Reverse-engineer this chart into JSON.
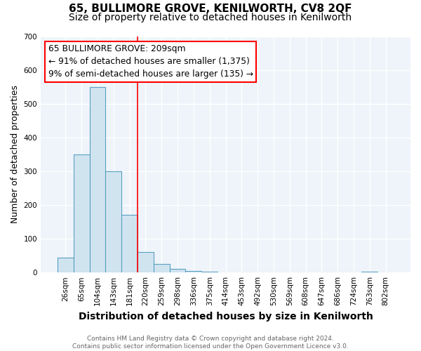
{
  "title": "65, BULLIMORE GROVE, KENILWORTH, CV8 2QF",
  "subtitle": "Size of property relative to detached houses in Kenilworth",
  "xlabel": "Distribution of detached houses by size in Kenilworth",
  "ylabel": "Number of detached properties",
  "footnote": "Contains HM Land Registry data © Crown copyright and database right 2024.\nContains public sector information licensed under the Open Government Licence v3.0.",
  "categories": [
    "26sqm",
    "65sqm",
    "104sqm",
    "143sqm",
    "181sqm",
    "220sqm",
    "259sqm",
    "298sqm",
    "336sqm",
    "375sqm",
    "414sqm",
    "453sqm",
    "492sqm",
    "530sqm",
    "569sqm",
    "608sqm",
    "647sqm",
    "686sqm",
    "724sqm",
    "763sqm",
    "802sqm"
  ],
  "values": [
    43,
    350,
    550,
    300,
    170,
    60,
    25,
    10,
    5,
    2,
    1,
    0,
    0,
    0,
    0,
    0,
    0,
    0,
    0,
    3,
    0
  ],
  "bar_color": "#d0e4f0",
  "bar_edge_color": "#5a9fc0",
  "vline_color": "red",
  "vline_x": 4.5,
  "ylim": [
    0,
    700
  ],
  "yticks": [
    0,
    100,
    200,
    300,
    400,
    500,
    600,
    700
  ],
  "background_color": "#eef4fa",
  "grid_color": "#ffffff",
  "title_fontsize": 11,
  "subtitle_fontsize": 10,
  "ylabel_fontsize": 9,
  "xlabel_fontsize": 10,
  "tick_fontsize": 7.5,
  "annotation_lines": [
    "65 BULLIMORE GROVE: 209sqm",
    "← 91% of detached houses are smaller (1,375)",
    "9% of semi-detached houses are larger (135) →"
  ],
  "footnote_fontsize": 6.5,
  "footnote_color": "#666666"
}
